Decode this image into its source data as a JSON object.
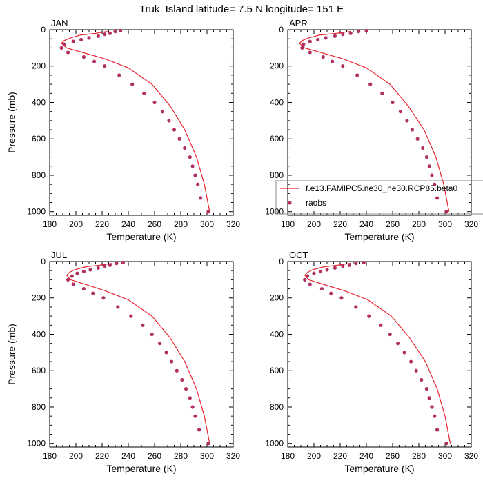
{
  "title": "Truk_Island  latitude= 7.5 N longitude= 151 E",
  "colors": {
    "model": "#e8252f",
    "obs": "#b03060"
  },
  "legend": {
    "model_label": "f.e13.FAMIPC5.ne30_ne30.RCP85.beta0",
    "obs_label": "raobs"
  },
  "chart_data": [
    {
      "type": "line",
      "month": "JAN",
      "xlabel": "Temperature (K)",
      "ylabel": "Pressure (mb)",
      "xlim": [
        180,
        320
      ],
      "ylim": [
        0,
        1020
      ],
      "y_inverted": true,
      "xticks": [
        180,
        200,
        220,
        240,
        260,
        280,
        300,
        320
      ],
      "yticks": [
        0,
        200,
        400,
        600,
        800,
        1000
      ],
      "series": [
        {
          "kind": "line",
          "x": [
            224,
            215,
            203,
            196,
            191,
            189,
            193,
            205,
            222,
            240,
            258,
            272,
            283,
            292,
            298,
            302
          ],
          "y": [
            10,
            20,
            30,
            45,
            60,
            75,
            100,
            125,
            160,
            210,
            300,
            420,
            550,
            700,
            850,
            1000
          ]
        },
        {
          "kind": "scatter",
          "x": [
            234,
            230,
            226,
            222,
            217,
            210,
            204,
            198,
            191,
            189,
            194,
            206,
            214,
            222,
            233,
            243,
            252,
            260,
            266,
            271,
            275,
            279,
            283,
            287,
            289,
            291,
            293,
            295,
            301
          ],
          "y": [
            5,
            10,
            20,
            25,
            35,
            45,
            55,
            65,
            80,
            100,
            125,
            150,
            175,
            200,
            250,
            300,
            350,
            400,
            450,
            500,
            550,
            600,
            650,
            700,
            750,
            800,
            850,
            925,
            1000
          ]
        }
      ]
    },
    {
      "type": "line",
      "month": "APR",
      "xlabel": "Temperature (K)",
      "ylabel": "",
      "xlim": [
        180,
        320
      ],
      "ylim": [
        0,
        1020
      ],
      "y_inverted": true,
      "xticks": [
        180,
        200,
        220,
        240,
        260,
        280,
        300,
        320
      ],
      "yticks": [
        0,
        200,
        400,
        600,
        800,
        1000
      ],
      "series": [
        {
          "kind": "line",
          "x": [
            228,
            217,
            204,
            196,
            191,
            189,
            193,
            205,
            222,
            240,
            258,
            272,
            284,
            293,
            299,
            303
          ],
          "y": [
            10,
            20,
            30,
            45,
            60,
            75,
            100,
            125,
            160,
            210,
            300,
            420,
            550,
            700,
            850,
            1000
          ]
        },
        {
          "kind": "scatter",
          "x": [
            240,
            234,
            228,
            222,
            216,
            209,
            203,
            197,
            192,
            191,
            197,
            207,
            214,
            222,
            233,
            243,
            252,
            260,
            266,
            271,
            275,
            279,
            283,
            286,
            288,
            290,
            292,
            294,
            301
          ],
          "y": [
            5,
            10,
            20,
            25,
            35,
            45,
            55,
            65,
            80,
            100,
            125,
            150,
            175,
            200,
            250,
            300,
            350,
            400,
            450,
            500,
            550,
            600,
            650,
            700,
            750,
            800,
            850,
            925,
            1000
          ]
        }
      ]
    },
    {
      "type": "line",
      "month": "JUL",
      "xlabel": "Temperature (K)",
      "ylabel": "Pressure (mb)",
      "xlim": [
        180,
        320
      ],
      "ylim": [
        0,
        1020
      ],
      "y_inverted": true,
      "xticks": [
        180,
        200,
        220,
        240,
        260,
        280,
        300,
        320
      ],
      "yticks": [
        0,
        200,
        400,
        600,
        800,
        1000
      ],
      "series": [
        {
          "kind": "line",
          "x": [
            228,
            218,
            207,
            199,
            195,
            193,
            196,
            207,
            222,
            240,
            258,
            272,
            283,
            292,
            298,
            302
          ],
          "y": [
            10,
            20,
            30,
            45,
            60,
            75,
            100,
            125,
            160,
            210,
            300,
            420,
            550,
            700,
            850,
            1000
          ]
        },
        {
          "kind": "scatter",
          "x": [
            236,
            231,
            226,
            222,
            217,
            211,
            206,
            201,
            197,
            194,
            198,
            206,
            213,
            221,
            232,
            242,
            251,
            258,
            264,
            269,
            273,
            277,
            281,
            284,
            287,
            289,
            291,
            294,
            301
          ],
          "y": [
            5,
            10,
            20,
            25,
            35,
            45,
            55,
            65,
            80,
            100,
            125,
            150,
            175,
            200,
            250,
            300,
            350,
            400,
            450,
            500,
            550,
            600,
            650,
            700,
            750,
            800,
            850,
            925,
            1000
          ]
        }
      ]
    },
    {
      "type": "line",
      "month": "OCT",
      "xlabel": "Temperature (K)",
      "ylabel": "",
      "xlim": [
        180,
        320
      ],
      "ylim": [
        0,
        1020
      ],
      "y_inverted": true,
      "xticks": [
        180,
        200,
        220,
        240,
        260,
        280,
        300,
        320
      ],
      "yticks": [
        0,
        200,
        400,
        600,
        800,
        1000
      ],
      "series": [
        {
          "kind": "line",
          "x": [
            228,
            218,
            207,
            199,
            195,
            193,
            196,
            207,
            223,
            241,
            259,
            273,
            285,
            294,
            300,
            304
          ],
          "y": [
            10,
            20,
            30,
            45,
            60,
            75,
            100,
            125,
            160,
            210,
            300,
            420,
            550,
            700,
            850,
            1000
          ]
        },
        {
          "kind": "scatter",
          "x": [
            238,
            232,
            227,
            222,
            216,
            210,
            205,
            200,
            195,
            193,
            197,
            206,
            213,
            221,
            232,
            242,
            251,
            258,
            264,
            269,
            274,
            278,
            282,
            286,
            288,
            290,
            292,
            294,
            301
          ],
          "y": [
            5,
            10,
            20,
            25,
            35,
            45,
            55,
            65,
            80,
            100,
            125,
            150,
            175,
            200,
            250,
            300,
            350,
            400,
            450,
            500,
            550,
            600,
            650,
            700,
            750,
            800,
            850,
            925,
            1000
          ]
        }
      ]
    }
  ]
}
